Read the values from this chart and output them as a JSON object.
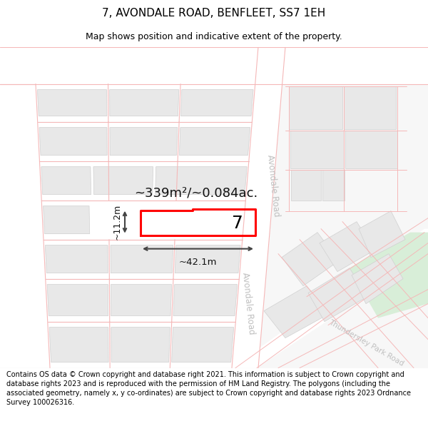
{
  "title": "7, AVONDALE ROAD, BENFLEET, SS7 1EH",
  "subtitle": "Map shows position and indicative extent of the property.",
  "footer": "Contains OS data © Crown copyright and database right 2021. This information is subject to Crown copyright and database rights 2023 and is reproduced with the permission of HM Land Registry. The polygons (including the associated geometry, namely x, y co-ordinates) are subject to Crown copyright and database rights 2023 Ordnance Survey 100026316.",
  "bg_color": "#ffffff",
  "plot_label": "7",
  "area_label": "~339m²/~0.084ac.",
  "width_label": "~42.1m",
  "height_label": "~11.2m",
  "title_fontsize": 11,
  "subtitle_fontsize": 9,
  "footer_fontsize": 7.0,
  "road_line_color": "#f5b8b8",
  "plot_outline_color": "#d0d0d0",
  "building_fill": "#e8e8e8",
  "road_fill": "#ffffff",
  "map_bg": "#f7f7f7",
  "highlight_color": "#ff0000"
}
